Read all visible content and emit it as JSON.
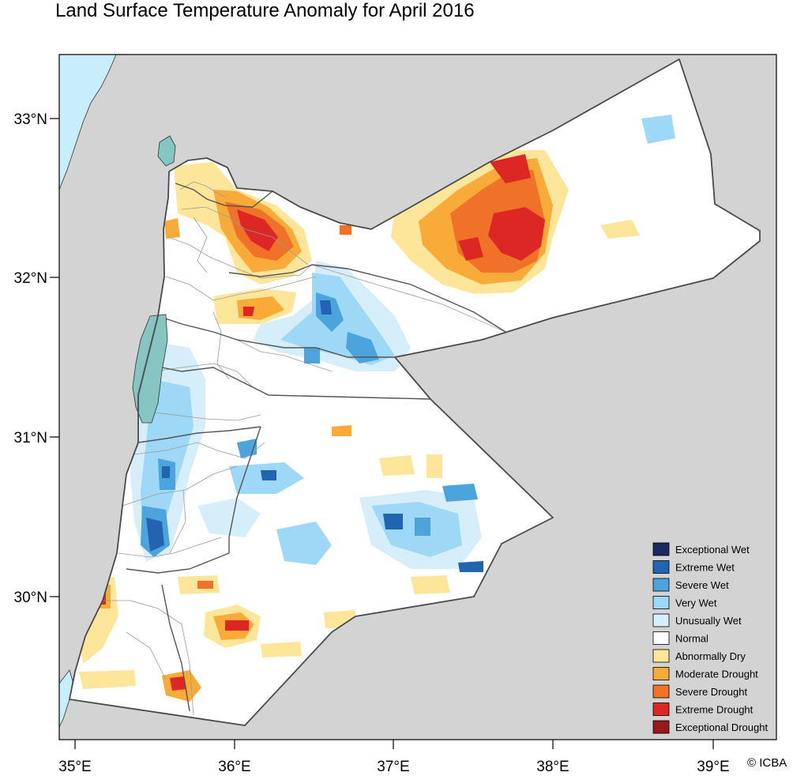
{
  "title": "Land Surface Temperature Anomaly for April 2016",
  "credit": "© ICBA",
  "axes": {
    "lon_ticks": [
      "35°E",
      "36°E",
      "37°E",
      "38°E",
      "39°E"
    ],
    "lat_ticks": [
      "33°N",
      "32°N",
      "31°N",
      "30°N"
    ]
  },
  "colors": {
    "outside": "#d3d3d3",
    "sea": "#c8eefb",
    "lake": "#86c5c2",
    "normal": "#ffffff"
  },
  "legend": [
    {
      "label": "Exceptional Wet",
      "color": "#1b2a5e"
    },
    {
      "label": "Extreme Wet",
      "color": "#2364b0"
    },
    {
      "label": "Severe Wet",
      "color": "#4da3dc"
    },
    {
      "label": "Very Wet",
      "color": "#9ed8f7"
    },
    {
      "label": "Unusually Wet",
      "color": "#d6eefa"
    },
    {
      "label": "Normal",
      "color": "#ffffff"
    },
    {
      "label": "Abnormally Dry",
      "color": "#fde59a"
    },
    {
      "label": "Moderate Drought",
      "color": "#f9ab3a"
    },
    {
      "label": "Severe Drought",
      "color": "#f07128"
    },
    {
      "label": "Extreme Drought",
      "color": "#dc2725"
    },
    {
      "label": "Exceptional Drought",
      "color": "#951a1c"
    }
  ]
}
